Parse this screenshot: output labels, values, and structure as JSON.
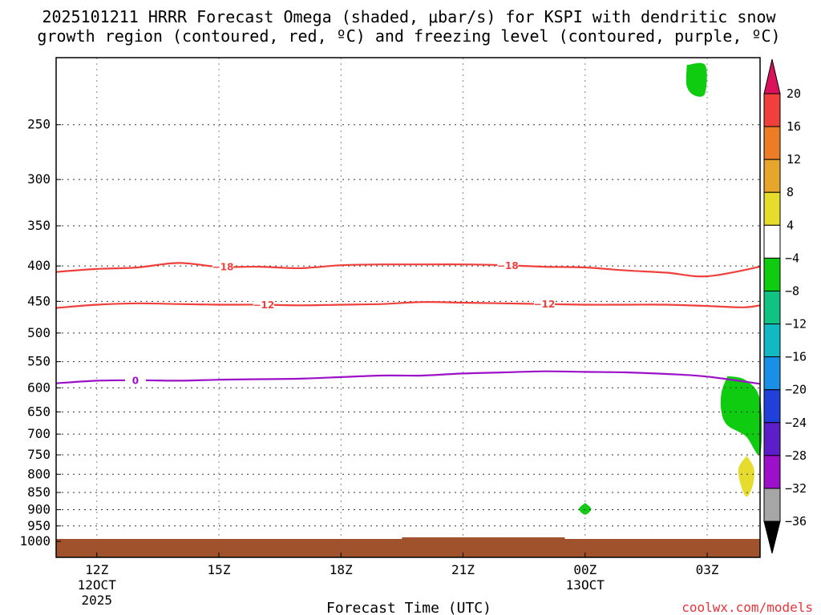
{
  "title_line1": "2025101211 HRRR Forecast Omega (shaded, μbar/s) for KSPI with dendritic snow",
  "title_line2": "growth region (contoured, red, ºC) and freezing level (contoured, purple, ºC)",
  "watermark": "coolwx.com/models",
  "chart_data": {
    "type": "time-height cross-section",
    "title": "2025101211 HRRR Forecast Omega (shaded, μbar/s) for KSPI with dendritic snow growth region (contoured, red, ºC) and freezing level (contoured, purple, ºC)",
    "xlabel": "Forecast Time (UTC)",
    "ylabel": "",
    "xlim": [
      11,
      28.3
    ],
    "ylim": [
      1000,
      200
    ],
    "y_scale": "log-pressure",
    "grid": true,
    "x_ticks": [
      {
        "x": 12,
        "label": "12Z",
        "sub1": "12OCT",
        "sub2": "2025"
      },
      {
        "x": 15,
        "label": "15Z",
        "sub1": "",
        "sub2": ""
      },
      {
        "x": 18,
        "label": "18Z",
        "sub1": "",
        "sub2": ""
      },
      {
        "x": 21,
        "label": "21Z",
        "sub1": "",
        "sub2": ""
      },
      {
        "x": 24,
        "label": "00Z",
        "sub1": "13OCT",
        "sub2": ""
      },
      {
        "x": 27,
        "label": "03Z",
        "sub1": "",
        "sub2": ""
      }
    ],
    "y_ticks": [
      250,
      300,
      350,
      400,
      450,
      500,
      550,
      600,
      650,
      700,
      750,
      800,
      850,
      900,
      950,
      1000
    ],
    "series": [
      {
        "name": "-18",
        "color": "#f0403c",
        "label_x": [
          15.1,
          22.1
        ],
        "points": [
          [
            11,
            408
          ],
          [
            12,
            404
          ],
          [
            13,
            402
          ],
          [
            14,
            396
          ],
          [
            15,
            401
          ],
          [
            16,
            401
          ],
          [
            17,
            403
          ],
          [
            18,
            399
          ],
          [
            19,
            398
          ],
          [
            20,
            398
          ],
          [
            21,
            398
          ],
          [
            22,
            399
          ],
          [
            23,
            401
          ],
          [
            24,
            402
          ],
          [
            25,
            406
          ],
          [
            26,
            409
          ],
          [
            27,
            414
          ],
          [
            28.3,
            401
          ]
        ]
      },
      {
        "name": "-12",
        "color": "#f0403c",
        "label_x": [
          16.1,
          23.0
        ],
        "points": [
          [
            11,
            460
          ],
          [
            12,
            455
          ],
          [
            13,
            453
          ],
          [
            14,
            454
          ],
          [
            15,
            455
          ],
          [
            16,
            455
          ],
          [
            17,
            456
          ],
          [
            18,
            455
          ],
          [
            19,
            454
          ],
          [
            20,
            451
          ],
          [
            21,
            452
          ],
          [
            22,
            453
          ],
          [
            23,
            454
          ],
          [
            24,
            455
          ],
          [
            25,
            455
          ],
          [
            26,
            455
          ],
          [
            27,
            457
          ],
          [
            27.9,
            459
          ],
          [
            28.3,
            456
          ]
        ]
      },
      {
        "name": "0",
        "color": "#9b10c8",
        "label_x": [
          12.95
        ],
        "points": [
          [
            11,
            591
          ],
          [
            12,
            586
          ],
          [
            13,
            585
          ],
          [
            14,
            586
          ],
          [
            15,
            584
          ],
          [
            16,
            583
          ],
          [
            17,
            582
          ],
          [
            18,
            579
          ],
          [
            19,
            576
          ],
          [
            20,
            576
          ],
          [
            21,
            572
          ],
          [
            22,
            570
          ],
          [
            23,
            568
          ],
          [
            24,
            569
          ],
          [
            25,
            570
          ],
          [
            26,
            573
          ],
          [
            27,
            578
          ],
          [
            28.3,
            592
          ]
        ]
      }
    ],
    "omega_areas": [
      {
        "level": "-4 to -8",
        "color": "#10cc10",
        "points": [
          [
            26.5,
            205
          ],
          [
            26.95,
            205
          ],
          [
            26.95,
            225
          ],
          [
            26.7,
            227
          ],
          [
            26.5,
            220
          ]
        ]
      },
      {
        "level": "-4 to -8",
        "color": "#10cc10",
        "points": [
          [
            27.5,
            577
          ],
          [
            27.95,
            585
          ],
          [
            28.3,
            625
          ],
          [
            28.3,
            748
          ],
          [
            27.95,
            705
          ],
          [
            27.5,
            680
          ],
          [
            27.35,
            650
          ],
          [
            27.35,
            610
          ]
        ]
      },
      {
        "level": "4 to 8",
        "color": "#e6dc2d",
        "points": [
          [
            27.97,
            752
          ],
          [
            28.15,
            785
          ],
          [
            28.12,
            830
          ],
          [
            27.97,
            862
          ],
          [
            27.83,
            830
          ],
          [
            27.77,
            785
          ]
        ]
      },
      {
        "level": "-4 to -8",
        "color": "#10cc10",
        "points": [
          [
            24,
            880
          ],
          [
            24.15,
            898
          ],
          [
            24,
            915
          ],
          [
            23.85,
            898
          ]
        ]
      }
    ],
    "colorbar": {
      "levels": [
        20,
        16,
        12,
        8,
        4,
        -4,
        -8,
        -12,
        -16,
        -20,
        -24,
        -28,
        -32,
        -36
      ],
      "colors": [
        "#da125c",
        "#f0403c",
        "#ed7c26",
        "#e6a52c",
        "#e6dc2d",
        "#ffffff",
        "#10cc10",
        "#12c283",
        "#12b8c2",
        "#1a8fe6",
        "#2040d9",
        "#5c1ec8",
        "#9b10c8",
        "#a6a6a6",
        "#000000"
      ]
    },
    "terrain_color": "#a0522d"
  }
}
